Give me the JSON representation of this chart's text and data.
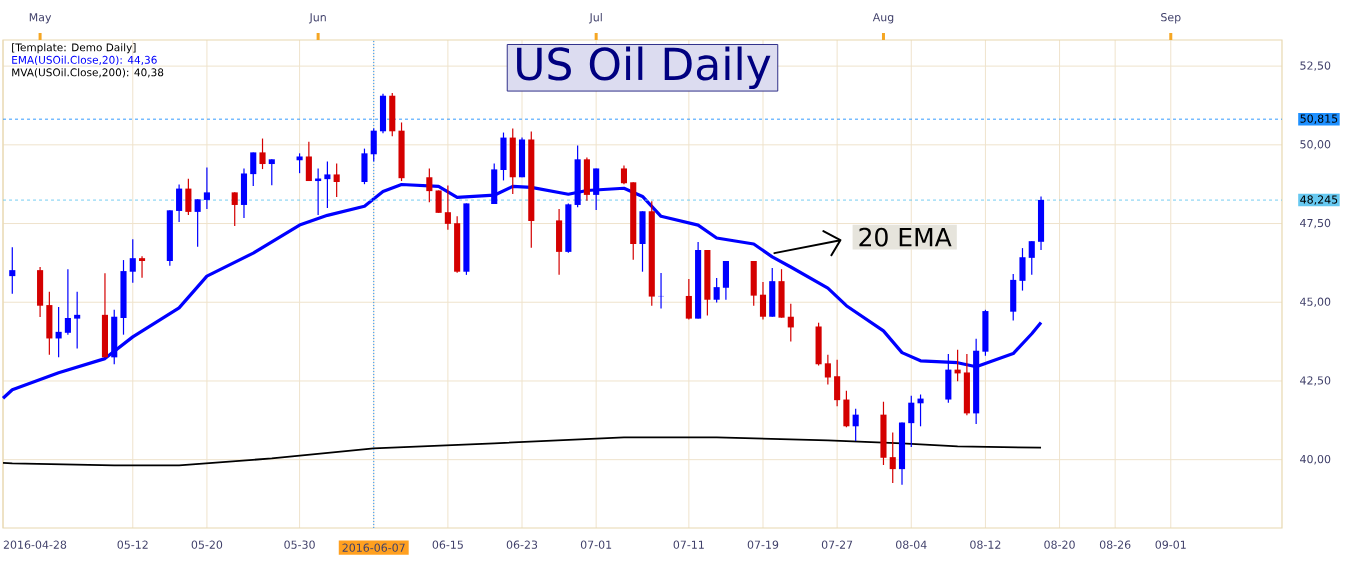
{
  "chart_data": {
    "type": "candlestick",
    "title": "US Oil Daily",
    "x": [
      "2016-04-29",
      "2016-05-02",
      "2016-05-03",
      "2016-05-04",
      "2016-05-05",
      "2016-05-06",
      "2016-05-09",
      "2016-05-10",
      "2016-05-11",
      "2016-05-12",
      "2016-05-13",
      "2016-05-16",
      "2016-05-17",
      "2016-05-18",
      "2016-05-19",
      "2016-05-20",
      "2016-05-23",
      "2016-05-24",
      "2016-05-25",
      "2016-05-26",
      "2016-05-27",
      "2016-05-30",
      "2016-05-31",
      "2016-06-01",
      "2016-06-02",
      "2016-06-03",
      "2016-06-06",
      "2016-06-07",
      "2016-06-08",
      "2016-06-09",
      "2016-06-10",
      "2016-06-13",
      "2016-06-14",
      "2016-06-15",
      "2016-06-16",
      "2016-06-17",
      "2016-06-20",
      "2016-06-21",
      "2016-06-22",
      "2016-06-23",
      "2016-06-24",
      "2016-06-27",
      "2016-06-28",
      "2016-06-29",
      "2016-06-30",
      "2016-07-01",
      "2016-07-04",
      "2016-07-05",
      "2016-07-06",
      "2016-07-07",
      "2016-07-08",
      "2016-07-11",
      "2016-07-12",
      "2016-07-13",
      "2016-07-14",
      "2016-07-15",
      "2016-07-18",
      "2016-07-19",
      "2016-07-20",
      "2016-07-21",
      "2016-07-22",
      "2016-07-25",
      "2016-07-26",
      "2016-07-27",
      "2016-07-28",
      "2016-07-29",
      "2016-08-01",
      "2016-08-02",
      "2016-08-03",
      "2016-08-04",
      "2016-08-05",
      "2016-08-08",
      "2016-08-09",
      "2016-08-10",
      "2016-08-11",
      "2016-08-12",
      "2016-08-15",
      "2016-08-16",
      "2016-08-17",
      "2016-08-18"
    ],
    "ohlc": [
      [
        45.83,
        46.75,
        45.27,
        46.02
      ],
      [
        46.02,
        46.12,
        44.53,
        44.89
      ],
      [
        44.91,
        45.33,
        43.33,
        43.85
      ],
      [
        43.85,
        44.85,
        43.25,
        44.06
      ],
      [
        44.03,
        46.05,
        43.97,
        44.5
      ],
      [
        44.48,
        45.33,
        43.53,
        44.6
      ],
      [
        44.6,
        45.92,
        43.25,
        43.25
      ],
      [
        43.25,
        44.76,
        43.03,
        44.54
      ],
      [
        44.5,
        46.34,
        43.97,
        45.99
      ],
      [
        45.97,
        47.0,
        45.62,
        46.4
      ],
      [
        46.4,
        46.46,
        45.78,
        46.31
      ],
      [
        46.31,
        47.92,
        46.16,
        47.92
      ],
      [
        47.9,
        48.74,
        47.55,
        48.61
      ],
      [
        48.61,
        48.92,
        47.77,
        47.87
      ],
      [
        47.87,
        48.27,
        46.76,
        48.27
      ],
      [
        48.25,
        49.28,
        47.96,
        48.49
      ],
      [
        48.49,
        48.49,
        47.42,
        48.09
      ],
      [
        48.09,
        49.25,
        47.68,
        49.09
      ],
      [
        49.07,
        49.76,
        48.69,
        49.76
      ],
      [
        49.76,
        50.2,
        49.23,
        49.39
      ],
      [
        49.39,
        49.54,
        48.72,
        49.54
      ],
      [
        49.51,
        49.73,
        49.1,
        49.63
      ],
      [
        49.63,
        50.1,
        48.85,
        48.85
      ],
      [
        48.85,
        49.25,
        47.77,
        48.93
      ],
      [
        48.91,
        49.47,
        47.99,
        49.06
      ],
      [
        49.06,
        49.41,
        48.34,
        48.82
      ],
      [
        48.82,
        49.88,
        48.75,
        49.73
      ],
      [
        49.7,
        50.52,
        49.48,
        50.45
      ],
      [
        50.43,
        51.62,
        50.37,
        51.56
      ],
      [
        51.56,
        51.65,
        50.27,
        50.43
      ],
      [
        50.45,
        50.71,
        48.85,
        48.94
      ],
      [
        48.97,
        49.25,
        48.18,
        48.53
      ],
      [
        48.55,
        48.55,
        47.84,
        47.84
      ],
      [
        47.86,
        48.71,
        47.3,
        47.49
      ],
      [
        47.51,
        47.73,
        45.94,
        45.97
      ],
      [
        45.97,
        48.14,
        45.87,
        48.14
      ],
      [
        48.12,
        49.41,
        48.12,
        49.22
      ],
      [
        49.2,
        50.39,
        48.87,
        50.23
      ],
      [
        50.23,
        50.52,
        48.44,
        48.97
      ],
      [
        48.97,
        50.23,
        48.97,
        50.17
      ],
      [
        50.17,
        50.42,
        46.73,
        47.58
      ],
      [
        47.6,
        47.96,
        45.87,
        46.6
      ],
      [
        46.6,
        48.14,
        46.57,
        48.11
      ],
      [
        48.09,
        49.98,
        48.02,
        49.54
      ],
      [
        49.54,
        49.6,
        48.22,
        48.41
      ],
      [
        48.41,
        49.25,
        47.93,
        49.25
      ],
      [
        49.25,
        49.34,
        48.75,
        48.78
      ],
      [
        48.81,
        48.81,
        46.35,
        46.85
      ],
      [
        46.85,
        47.89,
        45.97,
        47.89
      ],
      [
        47.89,
        48.21,
        44.89,
        45.18
      ],
      [
        45.19,
        45.93,
        44.8,
        45.2
      ],
      [
        45.2,
        45.74,
        44.45,
        44.48
      ],
      [
        44.48,
        46.91,
        44.48,
        46.66
      ],
      [
        46.66,
        46.66,
        44.58,
        45.08
      ],
      [
        45.08,
        45.77,
        44.99,
        45.48
      ],
      [
        45.46,
        46.31,
        45.08,
        46.31
      ],
      [
        46.31,
        46.31,
        44.89,
        45.21
      ],
      [
        45.24,
        45.64,
        44.45,
        44.54
      ],
      [
        44.54,
        46.09,
        44.54,
        45.67
      ],
      [
        45.67,
        46.05,
        44.51,
        44.51
      ],
      [
        44.54,
        44.95,
        43.75,
        44.2
      ],
      [
        44.23,
        44.35,
        42.99,
        43.03
      ],
      [
        43.06,
        43.33,
        42.39,
        42.61
      ],
      [
        42.65,
        43.17,
        41.7,
        41.89
      ],
      [
        41.91,
        42.19,
        41.03,
        41.06
      ],
      [
        41.06,
        41.62,
        40.59,
        41.43
      ],
      [
        41.43,
        41.84,
        39.83,
        40.06
      ],
      [
        40.08,
        40.86,
        39.26,
        39.7
      ],
      [
        39.7,
        41.18,
        39.2,
        41.18
      ],
      [
        41.16,
        42.03,
        40.4,
        41.81
      ],
      [
        41.79,
        42.07,
        41.06,
        41.94
      ],
      [
        41.91,
        43.36,
        41.81,
        42.86
      ],
      [
        42.86,
        43.49,
        42.49,
        42.74
      ],
      [
        42.77,
        43.36,
        41.41,
        41.47
      ],
      [
        41.47,
        43.84,
        41.13,
        43.46
      ],
      [
        43.43,
        44.76,
        43.3,
        44.72
      ],
      [
        44.7,
        45.9,
        44.42,
        45.71
      ],
      [
        45.68,
        46.72,
        45.37,
        46.43
      ],
      [
        46.41,
        46.94,
        45.87,
        46.94
      ],
      [
        46.92,
        48.36,
        46.66,
        48.25
      ]
    ],
    "colors": [
      "#0000ff",
      "#d40000",
      "#d40000",
      "#0000ff",
      "#0000ff",
      "#0000ff",
      "#d40000",
      "#0000ff",
      "#0000ff",
      "#0000ff",
      "#d40000",
      "#0000ff",
      "#0000ff",
      "#d40000",
      "#0000ff",
      "#0000ff",
      "#d40000",
      "#0000ff",
      "#0000ff",
      "#d40000",
      "#0000ff",
      "#0000ff",
      "#d40000",
      "#0000ff",
      "#0000ff",
      "#d40000",
      "#0000ff",
      "#0000ff",
      "#0000ff",
      "#d40000",
      "#d40000",
      "#d40000",
      "#d40000",
      "#d40000",
      "#d40000",
      "#0000ff",
      "#0000ff",
      "#0000ff",
      "#d40000",
      "#0000ff",
      "#d40000",
      "#d40000",
      "#0000ff",
      "#0000ff",
      "#d40000",
      "#0000ff",
      "#d40000",
      "#d40000",
      "#0000ff",
      "#d40000",
      "#0000ff",
      "#d40000",
      "#0000ff",
      "#d40000",
      "#0000ff",
      "#0000ff",
      "#d40000",
      "#d40000",
      "#0000ff",
      "#d40000",
      "#d40000",
      "#d40000",
      "#d40000",
      "#d40000",
      "#d40000",
      "#0000ff",
      "#d40000",
      "#d40000",
      "#0000ff",
      "#0000ff",
      "#0000ff",
      "#0000ff",
      "#d40000",
      "#d40000",
      "#0000ff",
      "#0000ff",
      "#0000ff",
      "#0000ff",
      "#0000ff",
      "#0000ff"
    ],
    "series": [
      {
        "name": "EMA(USOil.Close,20): 44,36",
        "type": "line",
        "color": "#0000ff",
        "x": [
          "2016-04-28",
          "2016-04-29",
          "2016-05-04",
          "2016-05-09",
          "2016-05-12",
          "2016-05-17",
          "2016-05-20",
          "2016-05-25",
          "2016-05-30",
          "2016-06-02",
          "2016-06-06",
          "2016-06-08",
          "2016-06-10",
          "2016-06-14",
          "2016-06-16",
          "2016-06-20",
          "2016-06-22",
          "2016-06-24",
          "2016-06-28",
          "2016-06-30",
          "2016-07-04",
          "2016-07-06",
          "2016-07-08",
          "2016-07-12",
          "2016-07-14",
          "2016-07-18",
          "2016-07-20",
          "2016-07-22",
          "2016-07-26",
          "2016-07-28",
          "2016-08-01",
          "2016-08-03",
          "2016-08-05",
          "2016-08-09",
          "2016-08-11",
          "2016-08-15",
          "2016-08-17",
          "2016-08-18"
        ],
        "values": [
          41.95,
          42.22,
          42.76,
          43.21,
          43.9,
          44.82,
          45.83,
          46.56,
          47.45,
          47.76,
          48.05,
          48.52,
          48.74,
          48.68,
          48.33,
          48.4,
          48.68,
          48.65,
          48.43,
          48.55,
          48.62,
          48.36,
          47.73,
          47.45,
          47.04,
          46.85,
          46.44,
          46.12,
          45.45,
          44.89,
          44.09,
          43.4,
          43.14,
          43.08,
          42.95,
          43.37,
          44.0,
          44.36
        ]
      },
      {
        "name": "MVA(USOil.Close,200): 40,38",
        "type": "line",
        "color": "#000000",
        "x": [
          "2016-04-28",
          "2016-04-29",
          "2016-05-10",
          "2016-05-17",
          "2016-05-27",
          "2016-06-07",
          "2016-06-20",
          "2016-07-04",
          "2016-07-14",
          "2016-07-26",
          "2016-08-03",
          "2016-08-09",
          "2016-08-18"
        ],
        "values": [
          39.9,
          39.88,
          39.82,
          39.82,
          40.04,
          40.36,
          40.52,
          40.71,
          40.71,
          40.61,
          40.52,
          40.42,
          40.38
        ]
      }
    ],
    "xlim": [
      "2016-04-28",
      "2016-09-13"
    ],
    "xticks": [
      {
        "value": "2016-04-28",
        "label": "2016-04-28"
      },
      {
        "value": "2016-05-12",
        "label": "05-12"
      },
      {
        "value": "2016-05-20",
        "label": "05-20"
      },
      {
        "value": "2016-05-30",
        "label": "05-30"
      },
      {
        "value": "2016-06-07",
        "label": "2016-06-07"
      },
      {
        "value": "2016-06-15",
        "label": "06-15"
      },
      {
        "value": "2016-06-23",
        "label": "06-23"
      },
      {
        "value": "2016-07-01",
        "label": "07-01"
      },
      {
        "value": "2016-07-11",
        "label": "07-11"
      },
      {
        "value": "2016-07-19",
        "label": "07-19"
      },
      {
        "value": "2016-07-27",
        "label": "07-27"
      },
      {
        "value": "2016-08-04",
        "label": "08-04"
      },
      {
        "value": "2016-08-12",
        "label": "08-12"
      },
      {
        "value": "2016-08-20",
        "label": "08-20"
      },
      {
        "value": "2016-08-26",
        "label": "08-26"
      },
      {
        "value": "2016-09-01",
        "label": "09-01"
      }
    ],
    "x2lim": [
      "2016-04-28",
      "2016-09-13"
    ],
    "x2ticks": [
      {
        "value": "2016-05-02",
        "label": "May"
      },
      {
        "value": "2016-06-01",
        "label": "Jun"
      },
      {
        "value": "2016-07-01",
        "label": "Jul"
      },
      {
        "value": "2016-08-01",
        "label": "Aug"
      },
      {
        "value": "2016-09-01",
        "label": "Sep"
      }
    ],
    "ylim": [
      37.83,
      53.33
    ],
    "yticks": [
      {
        "value": 40,
        "label": "40,00"
      },
      {
        "value": 42.5,
        "label": "42,50"
      },
      {
        "value": 45,
        "label": "45,00"
      },
      {
        "value": 47.5,
        "label": "47,50"
      },
      {
        "value": 50,
        "label": "50,00"
      },
      {
        "value": 52.5,
        "label": "52,50"
      }
    ],
    "grid": true,
    "legend": "top left",
    "ref_lines": [
      {
        "axis": "y",
        "value": 50.815,
        "label": "50,815",
        "color": "#1e90ff",
        "line_style": "dashed"
      },
      {
        "axis": "y",
        "value": 48.245,
        "label": "48,245",
        "color": "#66c8f0",
        "line_style": "dashed"
      },
      {
        "axis": "x",
        "value": "2016-06-07",
        "label": null,
        "color": "#1e90ff",
        "line_style": "dotted"
      }
    ],
    "annotations": [
      "[Template: Demo Daily]",
      "20 EMA"
    ]
  }
}
